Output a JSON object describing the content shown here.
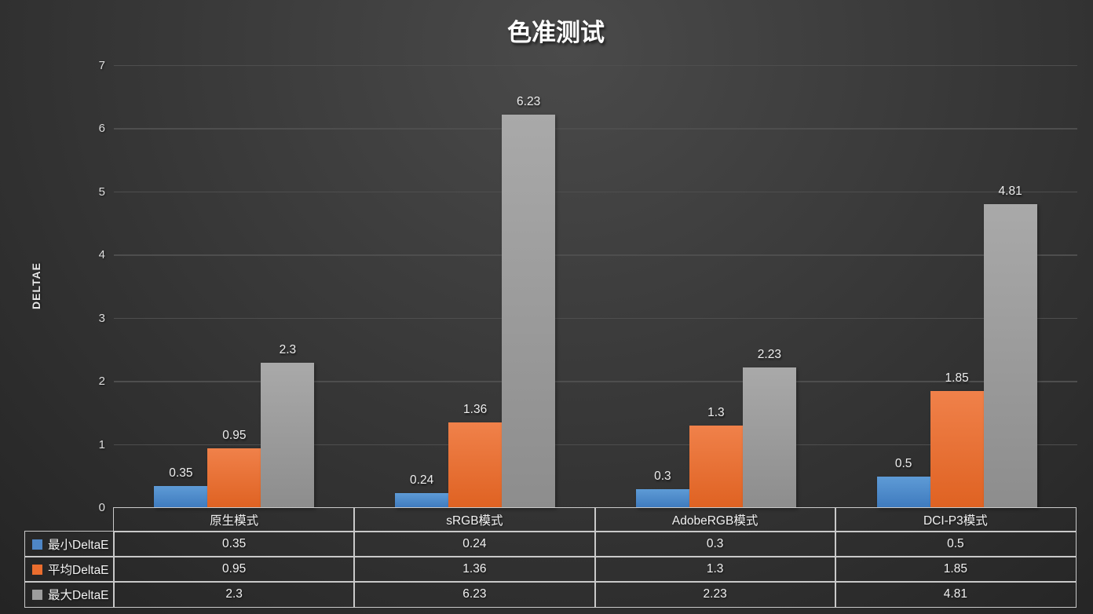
{
  "title": "色准测试",
  "chart_data": {
    "type": "bar",
    "title": "色准测试",
    "categories": [
      "原生模式",
      "sRGB模式",
      "AdobeRGB模式",
      "DCI-P3模式"
    ],
    "series": [
      {
        "name": "最小DeltaE",
        "values": [
          0.35,
          0.24,
          0.3,
          0.5
        ],
        "fill_top": "#5e9bd6",
        "fill_bottom": "#3e7abe",
        "legend_color": "#4e86c6"
      },
      {
        "name": "平均DeltaE",
        "values": [
          0.95,
          1.36,
          1.3,
          1.85
        ],
        "fill_top": "#f0814a",
        "fill_bottom": "#df6222",
        "legend_color": "#ea6d2e"
      },
      {
        "name": "最大DeltaE",
        "values": [
          2.3,
          6.23,
          2.23,
          4.81
        ],
        "fill_top": "#a9a9a9",
        "fill_bottom": "#8d8d8d",
        "legend_color": "#9d9d9d"
      }
    ],
    "xlabel": "",
    "ylabel": "DELTAE",
    "ylim": [
      0,
      7
    ],
    "yticks": [
      0,
      1,
      2,
      3,
      4,
      5,
      6,
      7
    ],
    "grid": true,
    "legend_position": "data-table-left",
    "data_table_shown": true,
    "colors": {
      "background_center": "#4a4a4a",
      "background_edge": "#242424",
      "gridline": "#4e4e4e",
      "table_border": "#c9c9c9",
      "text": "#eeeeee"
    }
  }
}
